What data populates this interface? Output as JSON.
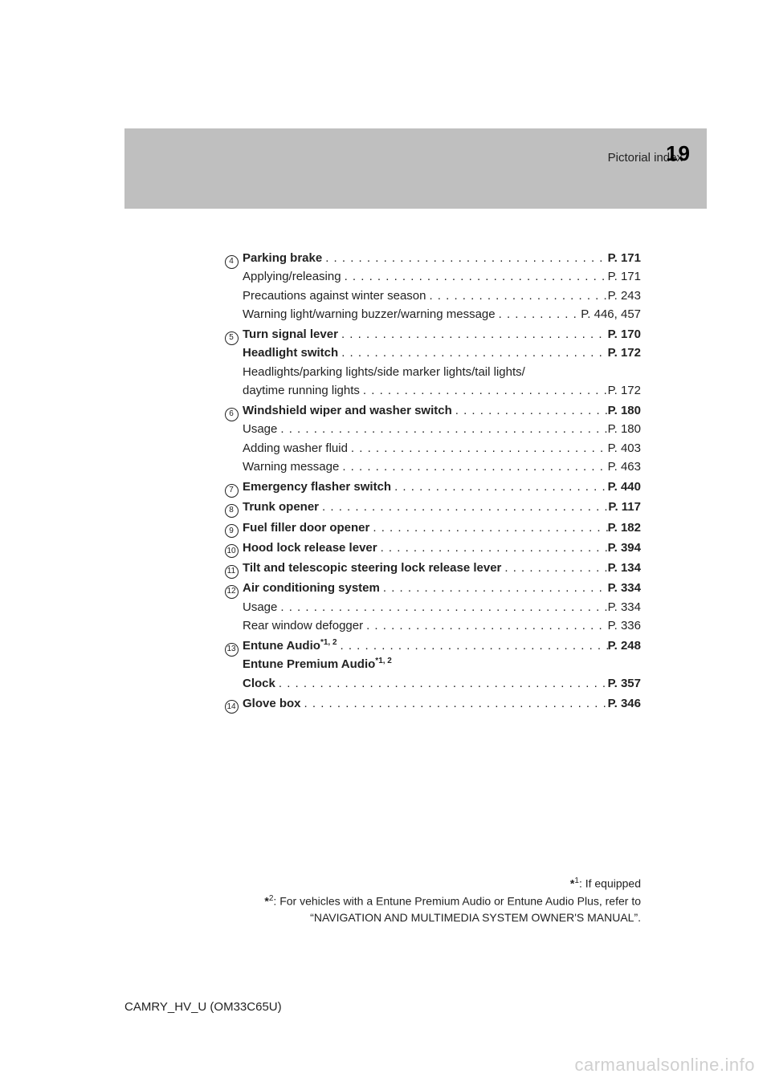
{
  "header": {
    "section": "Pictorial index",
    "page_number": "19"
  },
  "entries": [
    {
      "marker": "4",
      "lines": [
        {
          "label": "Parking brake",
          "bold": true,
          "page": "P. 171",
          "page_bold": true
        },
        {
          "label": "Applying/releasing",
          "page": "P. 171"
        },
        {
          "label": "Precautions against winter season",
          "page": "P. 243"
        },
        {
          "label": "Warning light/warning buzzer/warning message",
          "page": "P. 446, 457"
        }
      ]
    },
    {
      "marker": "5",
      "lines": [
        {
          "label": "Turn signal lever",
          "bold": true,
          "page": "P. 170",
          "page_bold": true
        },
        {
          "label": "Headlight switch",
          "bold": true,
          "page": "P. 172",
          "page_bold": true
        },
        {
          "label": "Headlights/parking lights/side marker lights/tail lights/",
          "no_page": true
        },
        {
          "label": "daytime running lights",
          "page": "P. 172"
        }
      ]
    },
    {
      "marker": "6",
      "lines": [
        {
          "label": "Windshield wiper and washer switch",
          "bold": true,
          "page": "P. 180",
          "page_bold": true
        },
        {
          "label": "Usage",
          "page": "P. 180"
        },
        {
          "label": "Adding washer fluid",
          "page": "P. 403"
        },
        {
          "label": "Warning message",
          "page": "P. 463"
        }
      ]
    },
    {
      "marker": "7",
      "lines": [
        {
          "label": "Emergency flasher switch",
          "bold": true,
          "page": "P. 440",
          "page_bold": true
        }
      ]
    },
    {
      "marker": "8",
      "lines": [
        {
          "label": "Trunk opener",
          "bold": true,
          "page": "P. 117",
          "page_bold": true
        }
      ]
    },
    {
      "marker": "9",
      "lines": [
        {
          "label": "Fuel filler door opener",
          "bold": true,
          "page": "P. 182",
          "page_bold": true
        }
      ]
    },
    {
      "marker": "10",
      "lines": [
        {
          "label": "Hood lock release lever",
          "bold": true,
          "page": "P. 394",
          "page_bold": true
        }
      ]
    },
    {
      "marker": "11",
      "lines": [
        {
          "label": "Tilt and telescopic steering lock release lever",
          "bold": true,
          "page": "P. 134",
          "page_bold": true
        }
      ]
    },
    {
      "marker": "12",
      "lines": [
        {
          "label": "Air conditioning system",
          "bold": true,
          "page": "P. 334",
          "page_bold": true
        },
        {
          "label": "Usage",
          "page": "P. 334"
        },
        {
          "label": "Rear window defogger",
          "page": "P. 336"
        }
      ]
    },
    {
      "marker": "13",
      "lines": [
        {
          "label": "Entune Audio",
          "bold": true,
          "sup": "*1, 2",
          "page": "P. 248",
          "page_bold": true
        },
        {
          "label": "Entune Premium Audio",
          "bold": true,
          "sup": "*1, 2",
          "no_page": true
        },
        {
          "label": "Clock",
          "bold": true,
          "page": "P. 357",
          "page_bold": true
        }
      ]
    },
    {
      "marker": "14",
      "lines": [
        {
          "label": "Glove box",
          "bold": true,
          "page": "P. 346",
          "page_bold": true
        }
      ]
    }
  ],
  "footnotes": [
    {
      "mark": "*",
      "num": "1",
      "text": ": If equipped"
    },
    {
      "mark": "*",
      "num": "2",
      "text": ": For vehicles with a Entune Premium Audio or Entune Audio Plus, refer to"
    },
    {
      "text": "“NAVIGATION AND MULTIMEDIA SYSTEM OWNER'S MANUAL”."
    }
  ],
  "doc_id": "CAMRY_HV_U (OM33C65U)",
  "watermark": "carmanualsonline.info",
  "dots": ". . . . . . . . . . . . . . . . . . . . . . . . . . . . . . . . . . . . . . . . . . . . . . . . . . . . . . . . . . . . . . . . . . . . . . . . . . . . . . . . . . . . . . . . . . . . . . . . . . . . . . . . . . . . . . . . . . . ."
}
